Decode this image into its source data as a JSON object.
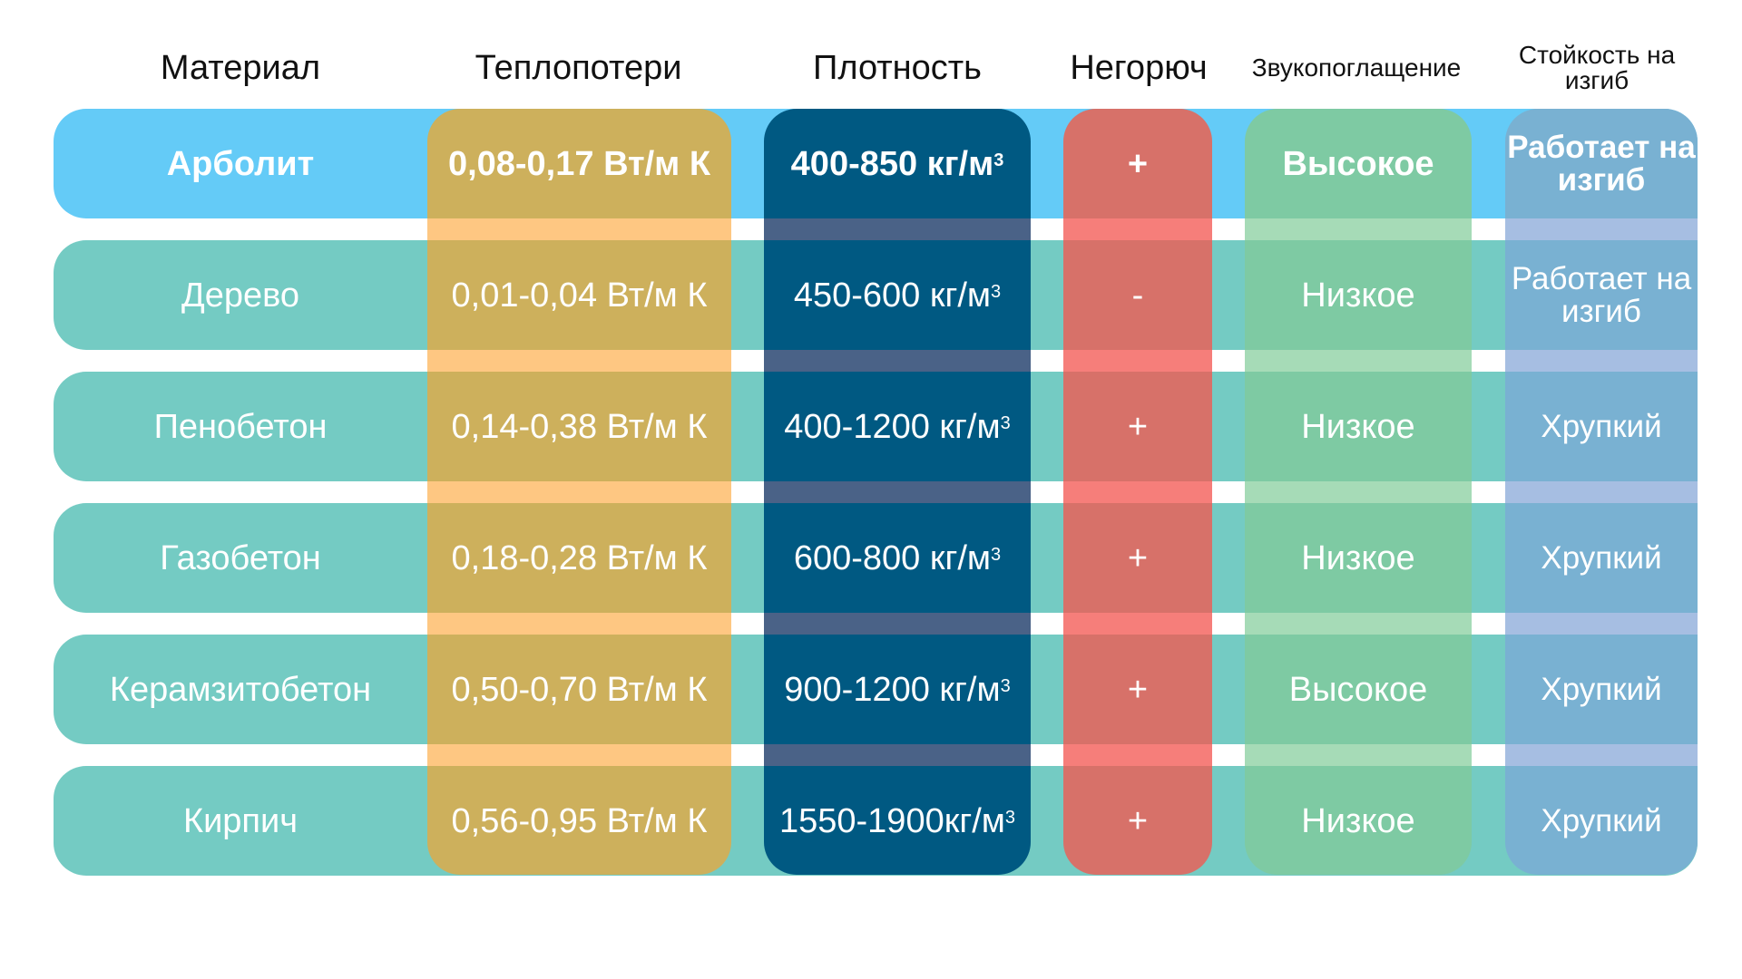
{
  "chart_data": {
    "type": "table",
    "columns": [
      "Материал",
      "Теплопотери",
      "Плотность",
      "Негорюч",
      "Звукопоглащение",
      "Стойкость на изгиб"
    ],
    "rows": [
      {
        "material": "Арболит",
        "heat_loss": "0,08-0,17 Вт/м К",
        "density_value": "400-850 кг/м",
        "density_sup": "3",
        "nonflammable": "+",
        "sound": "Высокое",
        "bending": "Работает на изгиб"
      },
      {
        "material": "Дерево",
        "heat_loss": "0,01-0,04 Вт/м К",
        "density_value": "450-600 кг/м",
        "density_sup": "3",
        "nonflammable": "-",
        "sound": "Низкое",
        "bending": "Работает на изгиб"
      },
      {
        "material": "Пенобетон",
        "heat_loss": "0,14-0,38 Вт/м К",
        "density_value": "400-1200 кг/м",
        "density_sup": "3",
        "nonflammable": "+",
        "sound": "Низкое",
        "bending": "Хрупкий"
      },
      {
        "material": "Газобетон",
        "heat_loss": "0,18-0,28 Вт/м К",
        "density_value": "600-800 кг/м",
        "density_sup": "3",
        "nonflammable": "+",
        "sound": "Низкое",
        "bending": "Хрупкий"
      },
      {
        "material": "Керамзитобетон",
        "heat_loss": "0,50-0,70 Вт/м К",
        "density_value": "900-1200 кг/м",
        "density_sup": "3",
        "nonflammable": "+",
        "sound": "Высокое",
        "bending": "Хрупкий"
      },
      {
        "material": "Кирпич",
        "heat_loss": "0,56-0,95 Вт/м К",
        "density_value": "1550-1900кг/м",
        "density_sup": "3",
        "nonflammable": "+",
        "sound": "Низкое",
        "bending": "Хрупкий"
      }
    ],
    "highlighted_row": "Арболит",
    "colors": {
      "highlight_row": "#64cbf7",
      "row": "#74cbc3",
      "heat_loss": "#cdb05c",
      "heat_loss_band": "#fec782",
      "density": "#005982",
      "density_band": "#4a6287",
      "nonflammable": "#d77169",
      "nonflammable_band": "#f67e7a",
      "sound": "#7ecaa3",
      "sound_band": "#a6dbb7",
      "bending": "#79b1d2",
      "bending_band": "#a6bee2"
    }
  }
}
